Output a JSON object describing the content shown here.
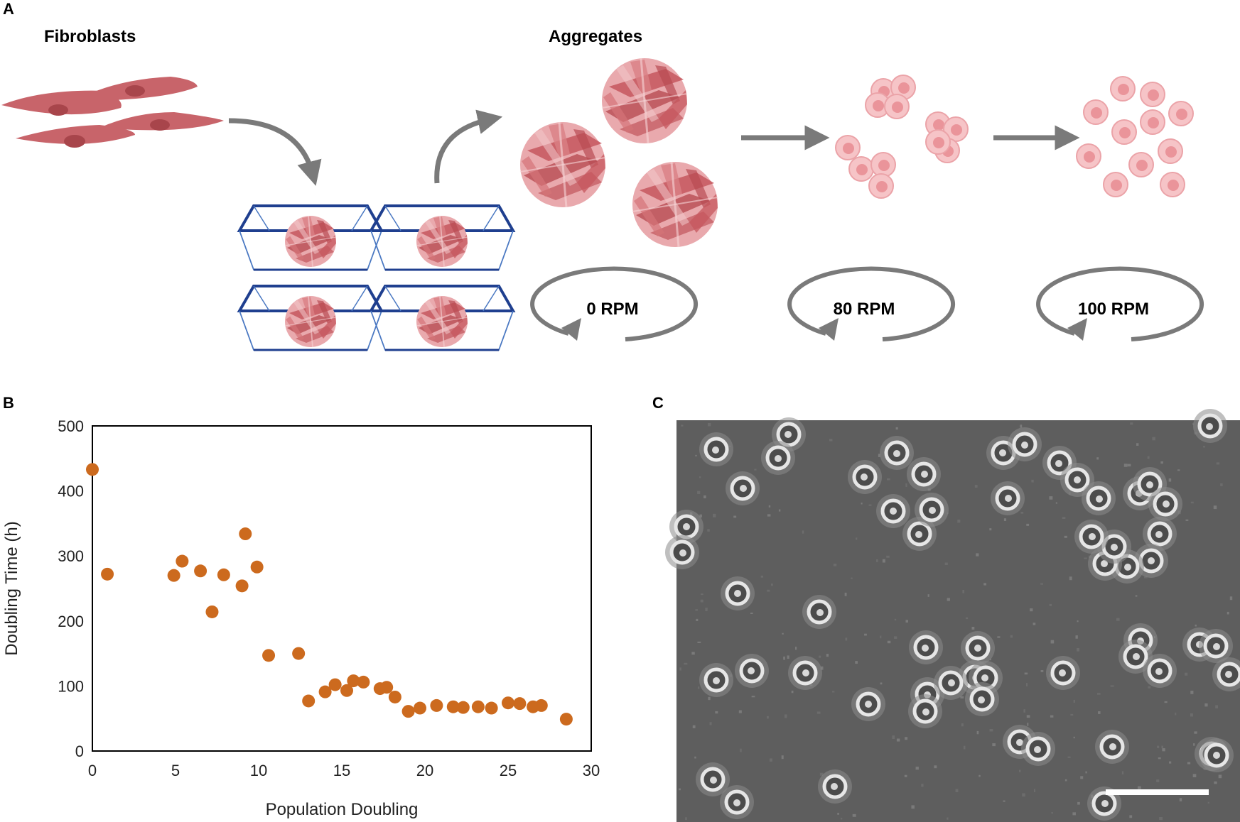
{
  "panels": {
    "a": {
      "letter": "A",
      "fibroblasts_label": "Fibroblasts",
      "aggregates_label": "Aggregates",
      "speeds": [
        "0 RPM",
        "80 RPM",
        "100 RPM"
      ]
    },
    "b": {
      "letter": "B"
    },
    "c": {
      "letter": "C"
    }
  },
  "colors": {
    "cell_fill": "#c8646a",
    "cell_nucleus": "#a8454b",
    "arrow": "#7a7a7a",
    "well": "#1f3f8f",
    "dot": "#cc6a1e",
    "micro_bg": "#5e5e5e",
    "light_cell": "#f1b4b8"
  },
  "chart_data": {
    "type": "scatter",
    "title": "",
    "xlabel": "Population Doubling",
    "ylabel": "Doubling Time (h)",
    "xlim": [
      0,
      30
    ],
    "ylim": [
      0,
      500
    ],
    "xticks": [
      0,
      5,
      10,
      15,
      20,
      25,
      30
    ],
    "yticks": [
      0,
      100,
      200,
      300,
      400,
      500
    ],
    "points": [
      [
        0,
        433
      ],
      [
        0.9,
        272
      ],
      [
        4.9,
        270
      ],
      [
        5.4,
        292
      ],
      [
        6.5,
        277
      ],
      [
        7.2,
        214
      ],
      [
        7.9,
        271
      ],
      [
        9.0,
        254
      ],
      [
        9.2,
        334
      ],
      [
        9.9,
        283
      ],
      [
        10.6,
        147
      ],
      [
        12.4,
        150
      ],
      [
        13.0,
        77
      ],
      [
        14.0,
        91
      ],
      [
        14.6,
        102
      ],
      [
        15.3,
        93
      ],
      [
        15.7,
        108
      ],
      [
        16.3,
        106
      ],
      [
        17.3,
        96
      ],
      [
        17.7,
        98
      ],
      [
        18.2,
        83
      ],
      [
        19.0,
        61
      ],
      [
        19.7,
        66
      ],
      [
        20.7,
        70
      ],
      [
        21.7,
        68
      ],
      [
        22.3,
        67
      ],
      [
        23.2,
        68
      ],
      [
        24.0,
        66
      ],
      [
        25.0,
        74
      ],
      [
        25.7,
        73
      ],
      [
        26.5,
        68
      ],
      [
        27.0,
        70
      ],
      [
        28.5,
        49
      ]
    ]
  }
}
